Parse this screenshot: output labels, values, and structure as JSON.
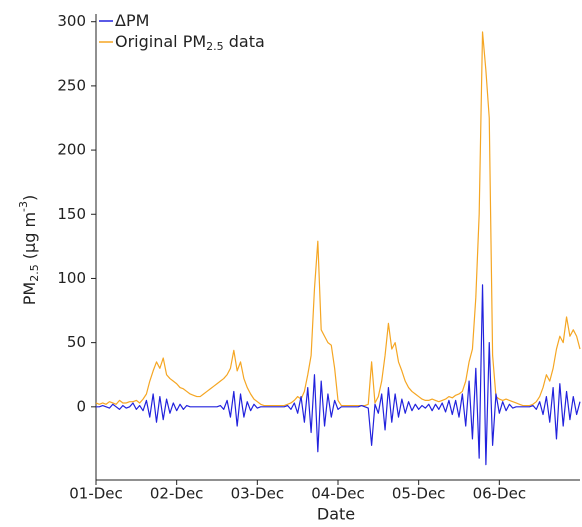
{
  "chart_data": {
    "type": "line",
    "ylabel": [
      "PM",
      "2.5",
      " (µg m",
      "-3",
      ")"
    ],
    "xlabel": "Date",
    "categories": [
      "01-Dec",
      null,
      null,
      null,
      null,
      null,
      null,
      null,
      null,
      null,
      null,
      null,
      null,
      null,
      null,
      null,
      null,
      null,
      null,
      null,
      null,
      null,
      null,
      null,
      "02-Dec",
      null,
      null,
      null,
      null,
      null,
      null,
      null,
      null,
      null,
      null,
      null,
      null,
      null,
      null,
      null,
      null,
      null,
      null,
      null,
      null,
      null,
      null,
      null,
      "03-Dec",
      null,
      null,
      null,
      null,
      null,
      null,
      null,
      null,
      null,
      null,
      null,
      null,
      null,
      null,
      null,
      null,
      null,
      null,
      null,
      null,
      null,
      null,
      null,
      "04-Dec",
      null,
      null,
      null,
      null,
      null,
      null,
      null,
      null,
      null,
      null,
      null,
      null,
      null,
      null,
      null,
      null,
      null,
      null,
      null,
      null,
      null,
      null,
      null,
      "05-Dec",
      null,
      null,
      null,
      null,
      null,
      null,
      null,
      null,
      null,
      null,
      null,
      null,
      null,
      null,
      null,
      null,
      null,
      null,
      null,
      null,
      null,
      null,
      null,
      "06-Dec",
      null,
      null,
      null,
      null,
      null,
      null,
      null,
      null,
      null,
      null,
      null,
      null,
      null,
      null,
      null,
      null,
      null,
      null,
      null,
      null,
      null,
      null,
      null,
      null
    ],
    "series": [
      {
        "name": [
          "ΔPM"
        ],
        "color": "#2222dd",
        "values": [
          0,
          0,
          1,
          0,
          -1,
          2,
          0,
          -2,
          1,
          -1,
          0,
          3,
          -2,
          1,
          -3,
          5,
          -8,
          10,
          -12,
          8,
          -10,
          6,
          -5,
          3,
          -3,
          2,
          -2,
          1,
          0,
          0,
          0,
          0,
          0,
          0,
          0,
          0,
          0,
          1,
          -2,
          5,
          -8,
          12,
          -15,
          10,
          -8,
          4,
          -3,
          2,
          -1,
          0,
          0,
          0,
          0,
          0,
          0,
          0,
          0,
          1,
          -2,
          3,
          -5,
          8,
          -12,
          15,
          -20,
          25,
          -35,
          20,
          -15,
          10,
          -8,
          5,
          -2,
          0,
          0,
          0,
          0,
          0,
          0,
          1,
          0,
          -1,
          -30,
          2,
          -5,
          10,
          -18,
          15,
          -12,
          10,
          -8,
          6,
          -5,
          4,
          -3,
          2,
          -2,
          1,
          -1,
          2,
          -3,
          2,
          -2,
          3,
          -4,
          5,
          -6,
          5,
          -8,
          10,
          -15,
          20,
          -25,
          30,
          -40,
          95,
          -45,
          50,
          -30,
          10,
          -5,
          4,
          -3,
          2,
          -1,
          0,
          0,
          0,
          0,
          0,
          1,
          -2,
          4,
          -6,
          8,
          -12,
          15,
          -25,
          18,
          -15,
          12,
          -10,
          8,
          -6,
          4
        ]
      },
      {
        "name": [
          "Original PM",
          "2.5",
          " data"
        ],
        "color": "#f5a623",
        "values": [
          3,
          2,
          3,
          2,
          4,
          3,
          2,
          5,
          3,
          3,
          4,
          4,
          5,
          3,
          6,
          10,
          20,
          28,
          35,
          30,
          38,
          25,
          22,
          20,
          18,
          15,
          14,
          12,
          10,
          9,
          8,
          8,
          10,
          12,
          14,
          16,
          18,
          20,
          22,
          25,
          30,
          44,
          28,
          35,
          22,
          15,
          10,
          6,
          4,
          2,
          1,
          1,
          1,
          1,
          1,
          1,
          1,
          2,
          3,
          5,
          8,
          6,
          12,
          25,
          40,
          92,
          129,
          60,
          55,
          50,
          48,
          30,
          5,
          1,
          1,
          1,
          1,
          1,
          1,
          1,
          1,
          2,
          35,
          3,
          8,
          20,
          40,
          65,
          45,
          50,
          35,
          28,
          20,
          15,
          12,
          10,
          8,
          6,
          5,
          5,
          6,
          5,
          4,
          5,
          6,
          8,
          7,
          9,
          10,
          12,
          20,
          35,
          45,
          85,
          150,
          292,
          262,
          225,
          40,
          8,
          6,
          5,
          6,
          5,
          4,
          3,
          2,
          1,
          1,
          1,
          2,
          4,
          8,
          15,
          25,
          20,
          30,
          45,
          55,
          50,
          70,
          55,
          60,
          55,
          45
        ]
      }
    ],
    "ylim": [
      -57,
      306
    ],
    "yticks": [
      0,
      50,
      100,
      150,
      200,
      250,
      300
    ],
    "grid": false
  }
}
